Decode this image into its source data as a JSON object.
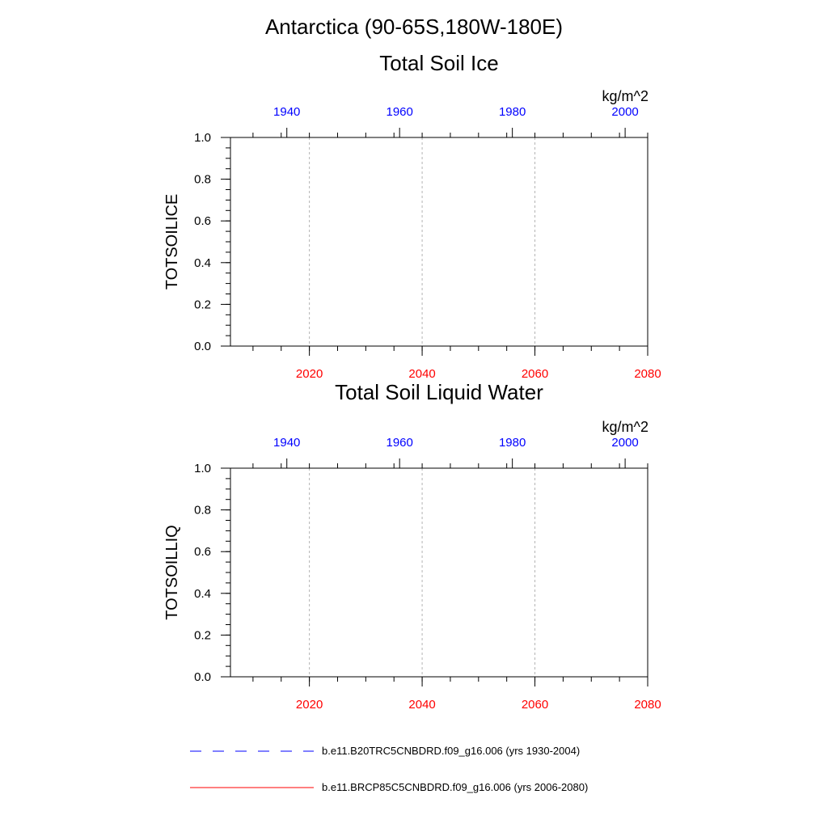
{
  "title": "Antarctica (90-65S,180W-180E)",
  "colors": {
    "top_axis": "#0000ff",
    "bottom_axis": "#ff0000",
    "historical": "#0000ff",
    "future": "#ff0000"
  },
  "legend": [
    {
      "label": "b.e11.B20TRC5CNBDRD.f09_g16.006 (yrs 1930-2004)",
      "color": "#0000ff",
      "dash": "dashed"
    },
    {
      "label": "b.e11.BRCP85C5CNBDRD.f09_g16.006 (yrs 2006-2080)",
      "color": "#ff0000",
      "dash": "solid"
    }
  ],
  "chart_data": [
    {
      "type": "line",
      "title": "Total Soil Ice",
      "units": "kg/m^2",
      "ylabel": "TOTSOILICE",
      "ylim": [
        0.0,
        1.0
      ],
      "yticks": [
        "0.0",
        "0.2",
        "0.4",
        "0.6",
        "0.8",
        "1.0"
      ],
      "top_axis": {
        "ticks": [
          "1940",
          "1960",
          "1980",
          "2000"
        ],
        "color": "#0000ff"
      },
      "bottom_axis": {
        "ticks": [
          "2020",
          "2040",
          "2060",
          "2080"
        ],
        "color": "#ff0000",
        "xlim": [
          2006,
          2080
        ]
      },
      "grid": "vertical dashed",
      "series": []
    },
    {
      "type": "line",
      "title": "Total Soil Liquid Water",
      "units": "kg/m^2",
      "ylabel": "TOTSOILLIQ",
      "ylim": [
        0.0,
        1.0
      ],
      "yticks": [
        "0.0",
        "0.2",
        "0.4",
        "0.6",
        "0.8",
        "1.0"
      ],
      "top_axis": {
        "ticks": [
          "1940",
          "1960",
          "1980",
          "2000"
        ],
        "color": "#0000ff"
      },
      "bottom_axis": {
        "ticks": [
          "2020",
          "2040",
          "2060",
          "2080"
        ],
        "color": "#ff0000",
        "xlim": [
          2006,
          2080
        ]
      },
      "grid": "vertical dashed",
      "series": []
    }
  ]
}
